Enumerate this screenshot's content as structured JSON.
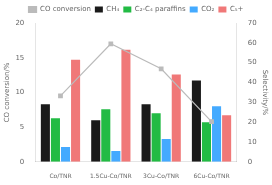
{
  "chart_data": {
    "type": "bar",
    "categories": [
      "Co/TNR",
      "1.5Cu-Co/TNR",
      "3Cu-Co/TNR",
      "6Cu-Co/TNR"
    ],
    "series": [
      {
        "name": "CO conversion",
        "type": "line",
        "color": "#bbbbbb",
        "marker": "square",
        "line_style": "solid",
        "values": [
          9.5,
          17.0,
          13.4,
          5.8
        ]
      },
      {
        "name": "CH₄",
        "type": "bar",
        "axis": "y2",
        "color": "#1a1a1a",
        "values": [
          29.0,
          21.0,
          29.0,
          41.0
        ]
      },
      {
        "name": "C₂-C₄ paraffins",
        "type": "bar",
        "axis": "y2",
        "color": "#22bb44",
        "values": [
          22.0,
          26.5,
          24.5,
          20.0
        ]
      },
      {
        "name": "CO₂",
        "type": "bar",
        "axis": "y2",
        "color": "#44aaff",
        "values": [
          7.5,
          5.5,
          11.5,
          28.0
        ]
      },
      {
        "name": "C₅+",
        "type": "bar",
        "axis": "y2",
        "color": "#f07878",
        "values": [
          51.5,
          56.5,
          44.0,
          23.5
        ]
      }
    ],
    "ylabel": "CO conversion/%",
    "y2label": "Selectivity/%",
    "ylim": [
      0,
      20
    ],
    "yticks": [
      0,
      5,
      10,
      15,
      20
    ],
    "y2lim": [
      0,
      70
    ],
    "y2ticks": [
      0,
      10,
      20,
      30,
      40,
      50,
      60,
      70
    ],
    "legend": "top",
    "grid": false
  }
}
